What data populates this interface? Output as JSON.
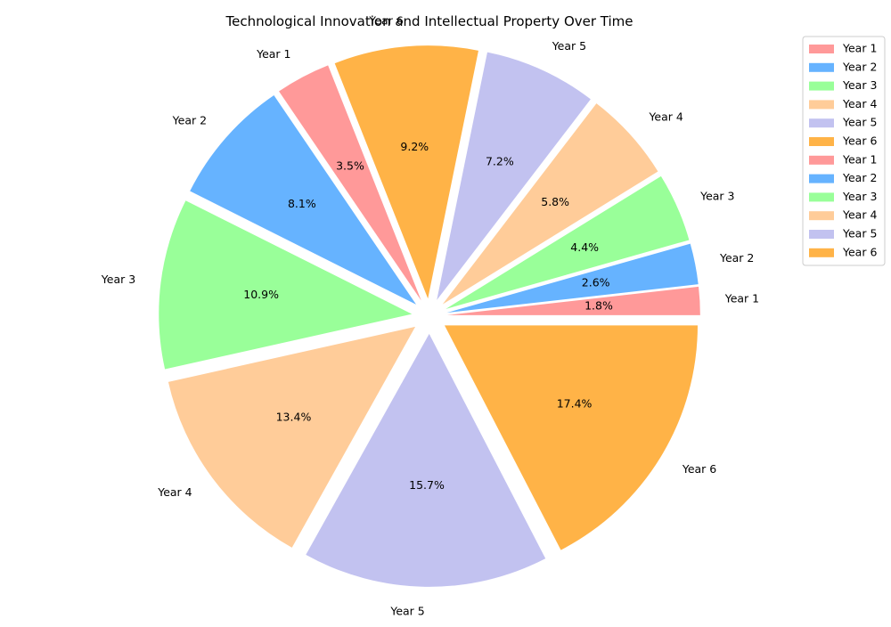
{
  "chart_data": {
    "type": "pie",
    "title": "Technological Innovation and Intellectual Property Over Time",
    "categories": [
      "Year 1",
      "Year 2",
      "Year 3",
      "Year 4",
      "Year 5",
      "Year 6",
      "Year 1",
      "Year 2",
      "Year 3",
      "Year 4",
      "Year 5",
      "Year 6"
    ],
    "values": [
      1.8,
      2.6,
      4.4,
      5.8,
      7.2,
      9.2,
      3.5,
      8.1,
      10.9,
      13.4,
      15.7,
      17.4
    ],
    "value_labels": [
      "1.8%",
      "2.6%",
      "4.4%",
      "5.8%",
      "7.2%",
      "9.2%",
      "3.5%",
      "8.1%",
      "10.9%",
      "13.4%",
      "15.7%",
      "17.4%"
    ],
    "colors": [
      "#ff9999",
      "#66b3ff",
      "#99ff99",
      "#ffcc99",
      "#c2c2f0",
      "#ffb347",
      "#ff9999",
      "#66b3ff",
      "#99ff99",
      "#ffcc99",
      "#c2c2f0",
      "#ffb347"
    ],
    "exploded": true,
    "legend": {
      "placement": "upper-right",
      "entries": [
        "Year 1",
        "Year 2",
        "Year 3",
        "Year 4",
        "Year 5",
        "Year 6",
        "Year 1",
        "Year 2",
        "Year 3",
        "Year 4",
        "Year 5",
        "Year 6"
      ]
    }
  }
}
